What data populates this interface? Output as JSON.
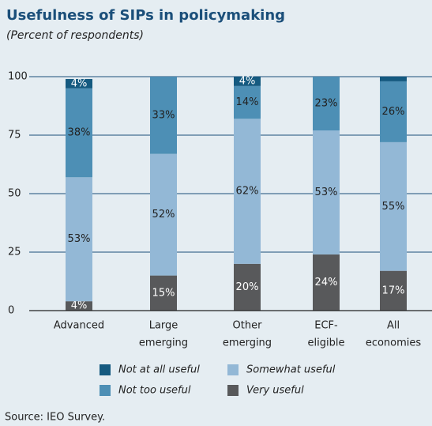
{
  "chart_data": {
    "type": "stacked_bar",
    "title": "Usefulness of SIPs in policymaking",
    "subtitle": "(Percent of respondents)",
    "source": "Source: IEO Survey.",
    "categories": [
      [
        "Advanced"
      ],
      [
        "Large",
        "emerging"
      ],
      [
        "Other",
        "emerging"
      ],
      [
        "ECF-",
        "eligible"
      ],
      [
        "All",
        "economies"
      ]
    ],
    "series": [
      {
        "name": "Very useful",
        "color": "#58595b",
        "values": [
          4,
          15,
          20,
          24,
          17
        ],
        "value_labels": [
          "4%",
          "15%",
          "20%",
          "24%",
          "17%"
        ]
      },
      {
        "name": "Somewhat useful",
        "color": "#93b8d6",
        "values": [
          53,
          52,
          62,
          53,
          55
        ],
        "value_labels": [
          "53%",
          "52%",
          "62%",
          "53%",
          "55%"
        ]
      },
      {
        "name": "Not too useful",
        "color": "#4d8fb5",
        "values": [
          38,
          33,
          14,
          23,
          26
        ],
        "value_labels": [
          "38%",
          "33%",
          "14%",
          "23%",
          "26%"
        ]
      },
      {
        "name": "Not at all useful",
        "color": "#155a80",
        "values": [
          4,
          null,
          4,
          null,
          2
        ],
        "value_labels": [
          "4%",
          null,
          "4%",
          null,
          null
        ]
      }
    ],
    "ylim": [
      0,
      100
    ],
    "yticks": [
      0,
      25,
      50,
      75,
      100
    ],
    "grid": true
  }
}
